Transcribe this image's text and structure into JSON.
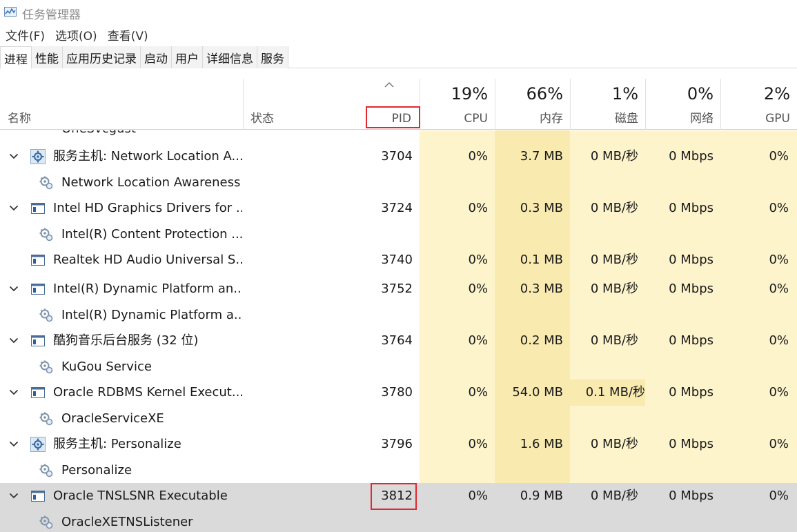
{
  "window": {
    "title": "任务管理器"
  },
  "menu": [
    "文件(F)",
    "选项(O)",
    "查看(V)"
  ],
  "tabs": [
    "进程",
    "性能",
    "应用历史记录",
    "启动",
    "用户",
    "详细信息",
    "服务"
  ],
  "columns": {
    "name": "名称",
    "status": "状态",
    "pid": "PID",
    "cpu": {
      "pct": "19%",
      "label": "CPU"
    },
    "mem": {
      "pct": "66%",
      "label": "内存"
    },
    "disk": {
      "pct": "1%",
      "label": "磁盘"
    },
    "net": {
      "pct": "0%",
      "label": "网络"
    },
    "gpu": {
      "pct": "2%",
      "label": "GPU"
    }
  },
  "partial_row": "OneSvcgust",
  "rows": [
    {
      "type": "parent",
      "icon": "gear-icon",
      "name": "服务主机: Network Location A...",
      "pid": "3704",
      "cpu": "0%",
      "mem": "3.7 MB",
      "disk": "0 MB/秒",
      "net": "0 Mbps",
      "gpu": "0%"
    },
    {
      "type": "child",
      "icon": "service-gear-icon",
      "name": "Network Location Awareness"
    },
    {
      "type": "parent",
      "icon": "window-icon",
      "name": "Intel HD Graphics Drivers for ...",
      "pid": "3724",
      "cpu": "0%",
      "mem": "0.3 MB",
      "disk": "0 MB/秒",
      "net": "0 Mbps",
      "gpu": "0%"
    },
    {
      "type": "child",
      "icon": "service-gear-icon",
      "name": "Intel(R) Content Protection ..."
    },
    {
      "type": "single",
      "icon": "window-icon",
      "name": "Realtek HD Audio Universal S...",
      "pid": "3740",
      "cpu": "0%",
      "mem": "0.1 MB",
      "disk": "0 MB/秒",
      "net": "0 Mbps",
      "gpu": "0%"
    },
    {
      "type": "parent",
      "icon": "window-icon",
      "name": "Intel(R) Dynamic Platform an...",
      "pid": "3752",
      "cpu": "0%",
      "mem": "0.3 MB",
      "disk": "0 MB/秒",
      "net": "0 Mbps",
      "gpu": "0%"
    },
    {
      "type": "child",
      "icon": "service-gear-icon",
      "name": "Intel(R) Dynamic Platform a..."
    },
    {
      "type": "parent",
      "icon": "window-icon",
      "name": "酷狗音乐后台服务 (32 位)",
      "pid": "3764",
      "cpu": "0%",
      "mem": "0.2 MB",
      "disk": "0 MB/秒",
      "net": "0 Mbps",
      "gpu": "0%"
    },
    {
      "type": "child",
      "icon": "service-gear-icon",
      "name": "KuGou Service"
    },
    {
      "type": "parent",
      "icon": "window-icon",
      "name": "Oracle RDBMS Kernel Execut...",
      "pid": "3780",
      "cpu": "0%",
      "mem": "54.0 MB",
      "disk": "0.1 MB/秒",
      "net": "0 Mbps",
      "gpu": "0%"
    },
    {
      "type": "child",
      "icon": "service-gear-icon",
      "name": "OracleServiceXE"
    },
    {
      "type": "parent",
      "icon": "gear-icon",
      "name": "服务主机: Personalize",
      "pid": "3796",
      "cpu": "0%",
      "mem": "1.6 MB",
      "disk": "0 MB/秒",
      "net": "0 Mbps",
      "gpu": "0%"
    },
    {
      "type": "child",
      "icon": "service-gear-icon",
      "name": "Personalize"
    },
    {
      "type": "parent",
      "icon": "window-icon",
      "name": "Oracle TNSLSNR Executable",
      "pid": "3812",
      "cpu": "0%",
      "mem": "0.9 MB",
      "disk": "0 MB/秒",
      "net": "0 Mbps",
      "gpu": "0%",
      "selected": true
    },
    {
      "type": "child",
      "icon": "service-gear-icon",
      "name": "OracleXETNSListener",
      "selected": true
    }
  ]
}
